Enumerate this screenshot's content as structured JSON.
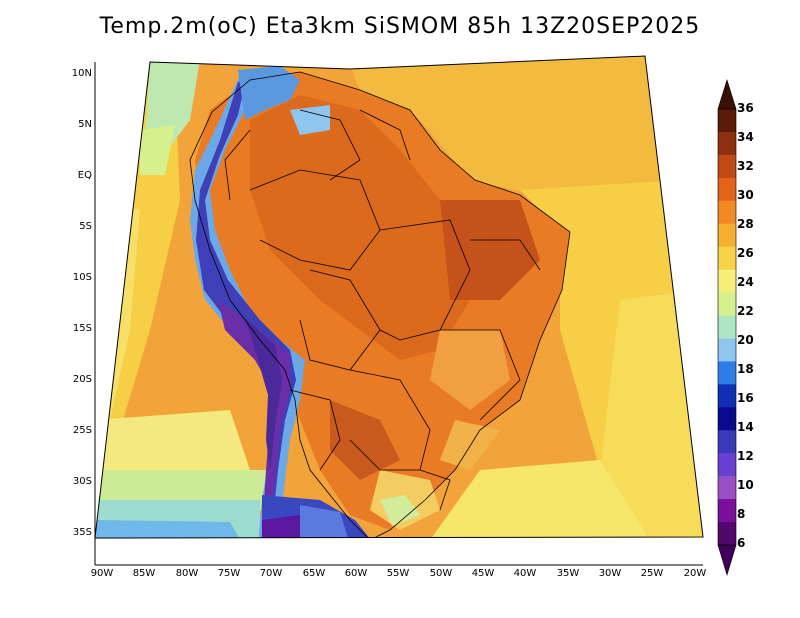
{
  "title": "Temp.2m(oC) Eta3km SiSMOM 85h 13Z20SEP2025",
  "latitude_labels": [
    "10N",
    "5N",
    "EQ",
    "5S",
    "10S",
    "15S",
    "20S",
    "25S",
    "30S",
    "35S"
  ],
  "longitude_labels": [
    "90W",
    "85W",
    "80W",
    "75W",
    "70W",
    "65W",
    "60W",
    "55W",
    "50W",
    "45W",
    "40W",
    "35W",
    "30W",
    "25W",
    "20W"
  ],
  "colorbar": {
    "labels": [
      "36",
      "34",
      "32",
      "30",
      "28",
      "26",
      "24",
      "22",
      "20",
      "18",
      "16",
      "14",
      "12",
      "10",
      "8",
      "6"
    ],
    "colors": [
      "#5a1a08",
      "#8c3010",
      "#c04a14",
      "#e0641a",
      "#f08a24",
      "#f5ae32",
      "#f7d24a",
      "#f7ee7a",
      "#d6f08e",
      "#aee6c4",
      "#8ec6f0",
      "#2e7ee8",
      "#1030b4",
      "#0a0a8c",
      "#3a3ab8",
      "#6a40d0",
      "#9a50c4",
      "#7a109a",
      "#50086a"
    ],
    "top_arrow_color": "#3a1004",
    "bottom_arrow_color": "#40005a"
  }
}
